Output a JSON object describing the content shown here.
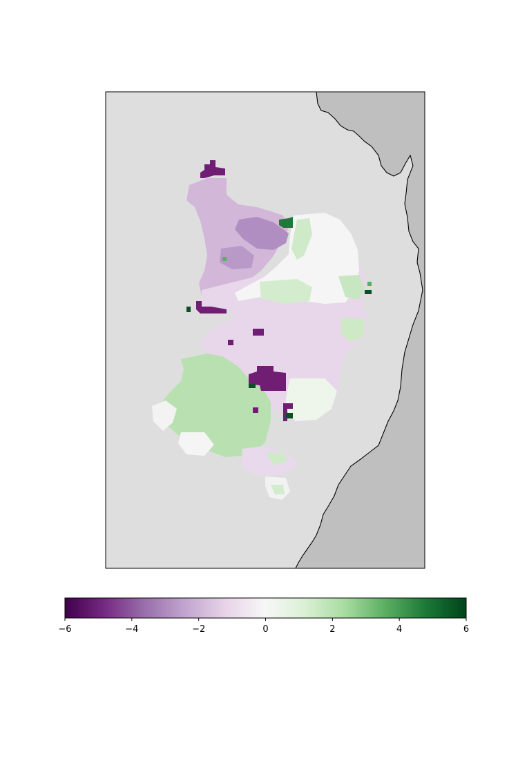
{
  "map": {
    "background_color": "#dedede",
    "land_color": "#bfbfbf",
    "coastline_color": "#000000"
  },
  "colorbar": {
    "colormap": "PRGn",
    "vmin": -6,
    "vmax": 6,
    "orientation": "horizontal",
    "colors": [
      "#40004b",
      "#762a83",
      "#9970ab",
      "#c2a5cf",
      "#e7d4e8",
      "#f7f7f7",
      "#d9f0d3",
      "#a6dba0",
      "#5aae61",
      "#1b7837",
      "#00441b"
    ],
    "ticks": [
      {
        "value": -6,
        "label": "−6"
      },
      {
        "value": -4,
        "label": "−4"
      },
      {
        "value": -2,
        "label": "−2"
      },
      {
        "value": 0,
        "label": "0"
      },
      {
        "value": 2,
        "label": "2"
      },
      {
        "value": 4,
        "label": "4"
      },
      {
        "value": 6,
        "label": "6"
      }
    ]
  }
}
